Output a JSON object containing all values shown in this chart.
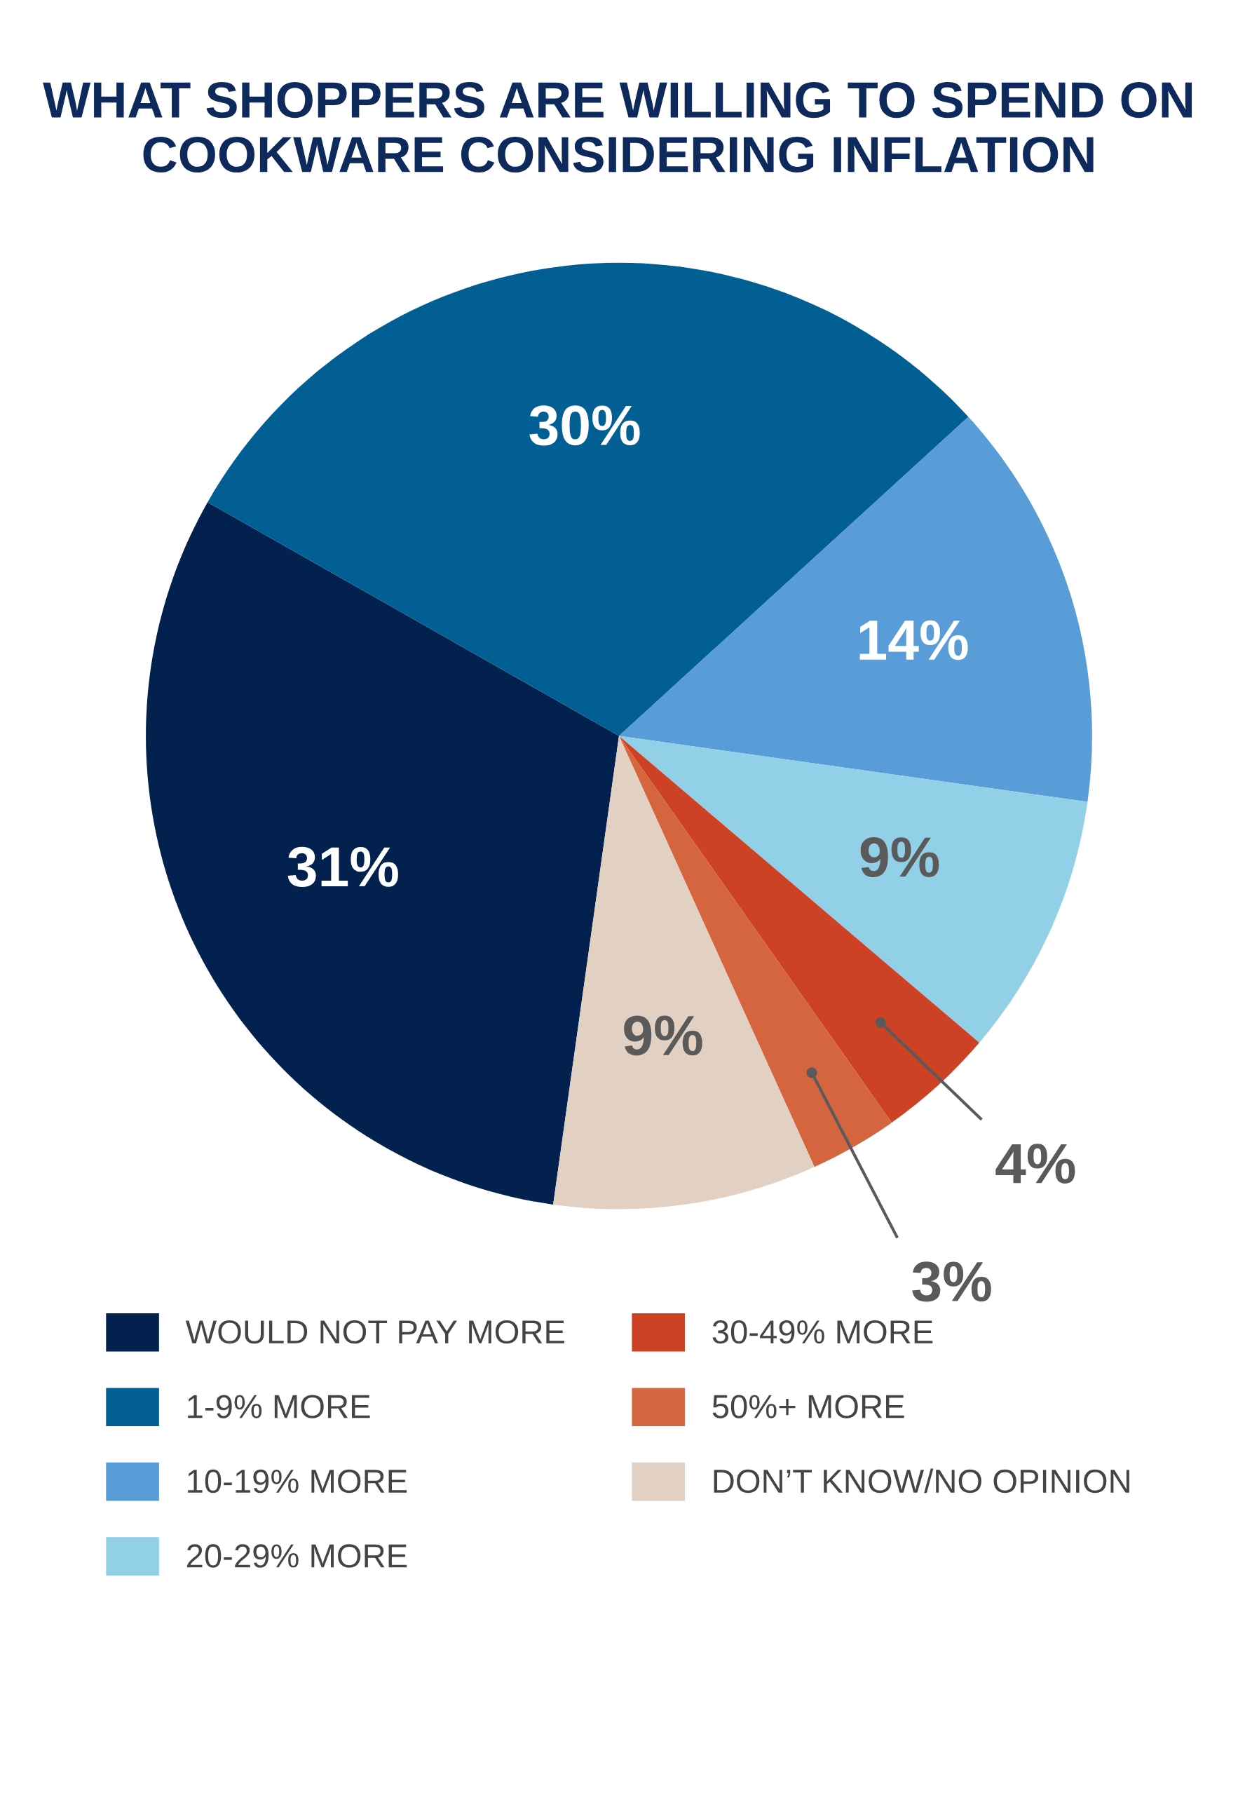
{
  "chart_data": {
    "type": "pie",
    "title": "WHAT SHOPPERS ARE WILLING TO SPEND ON\nCOOKWARE CONSIDERING INFLATION",
    "categories": [
      "WOULD NOT PAY MORE",
      "1-9% MORE",
      "10-19% MORE",
      "20-29% MORE",
      "30-49% MORE",
      "50%+ MORE",
      "DON’T KNOW/NO OPINION"
    ],
    "values": [
      31,
      30,
      14,
      9,
      4,
      3,
      9
    ],
    "colors": [
      "#02214f",
      "#015f94",
      "#589dd7",
      "#92d0e8",
      "#cd4125",
      "#d4653f",
      "#e2d0c2"
    ],
    "value_labels": [
      "31%",
      "30%",
      "14%",
      "9%",
      "4%",
      "3%",
      "9%"
    ],
    "legend": "bottom"
  }
}
